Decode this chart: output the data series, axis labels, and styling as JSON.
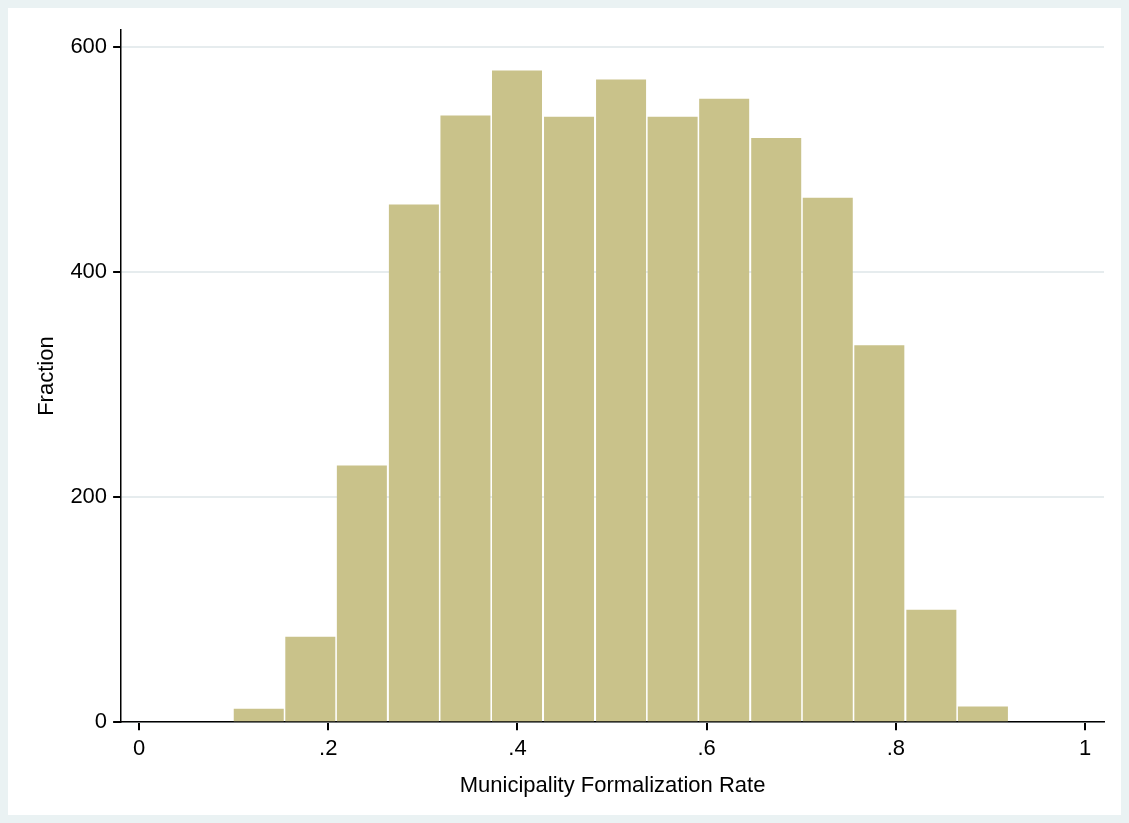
{
  "chart_data": {
    "type": "histogram",
    "xlabel": "Municipality Formalization Rate",
    "ylabel": "Fraction",
    "bins": [
      0.099,
      0.154,
      0.208,
      0.263,
      0.318,
      0.372,
      0.427,
      0.482,
      0.537,
      0.591,
      0.646,
      0.701,
      0.755,
      0.81,
      0.865,
      0.919
    ],
    "values": [
      12,
      76,
      228,
      460,
      539,
      579,
      538,
      571,
      538,
      554,
      519,
      466,
      335,
      100,
      14
    ],
    "color": "#c9c28a",
    "xlim": [
      -0.019,
      1.02
    ],
    "xticks": [
      0,
      {
        "value": 0.2,
        "label": ".2"
      },
      {
        "value": 0.4,
        "label": ".4"
      },
      {
        "value": 0.6,
        "label": ".6"
      },
      {
        "value": 0.8,
        "label": ".8"
      },
      1
    ],
    "ylim": [
      0,
      615
    ],
    "yticks": [
      0,
      200,
      400,
      600
    ],
    "grid": "y",
    "legend": false
  }
}
